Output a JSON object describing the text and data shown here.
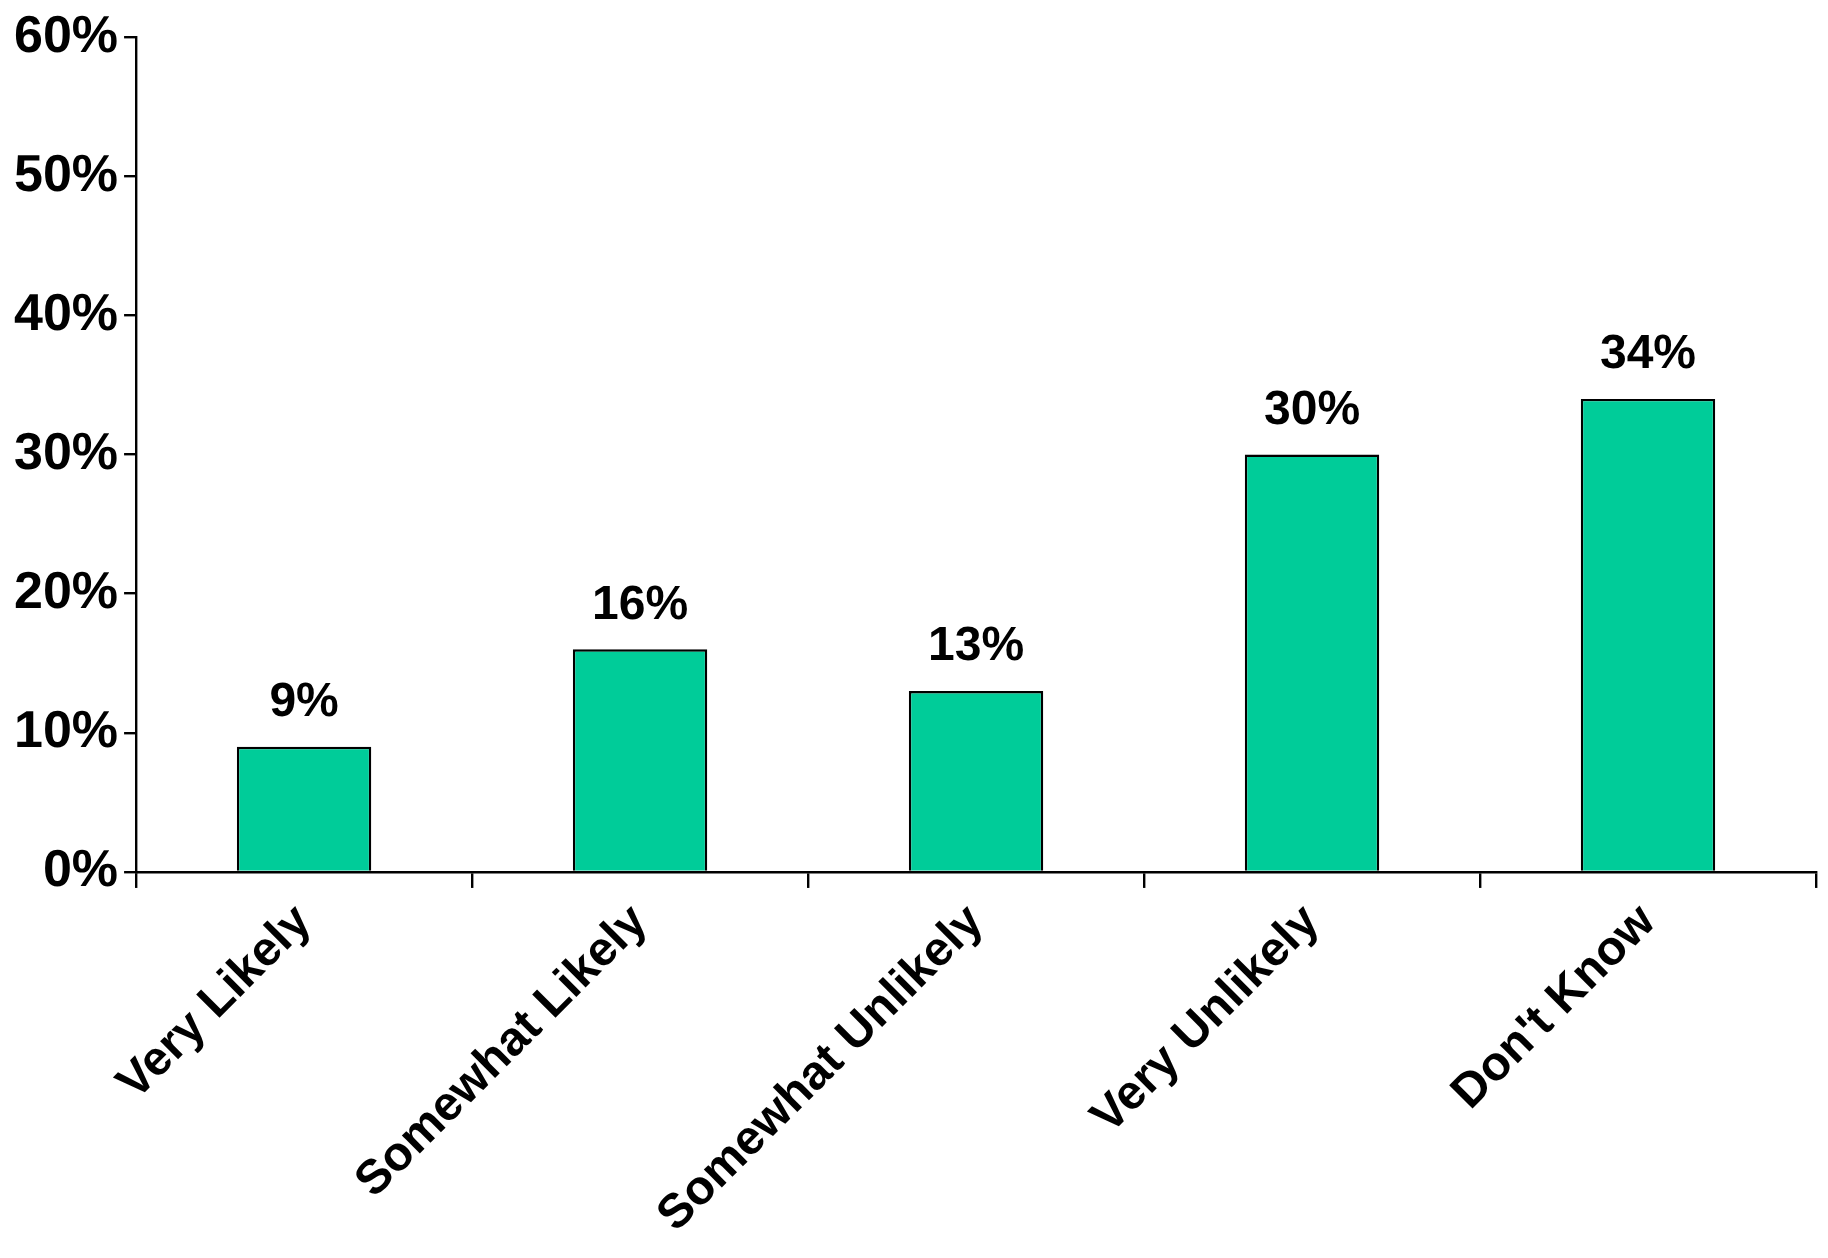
{
  "chart_data": {
    "type": "bar",
    "categories": [
      "Very Likely",
      "Somewhat Likely",
      "Somewhat Unlikely",
      "Very Unlikely",
      "Don't Know"
    ],
    "values": [
      9,
      16,
      13,
      30,
      34
    ],
    "value_labels": [
      "9%",
      "16%",
      "13%",
      "30%",
      "34%"
    ],
    "color": "#00cc99",
    "ylim": [
      0,
      60
    ],
    "yticks": [
      {
        "value": 0,
        "label": "0%"
      },
      {
        "value": 10,
        "label": "10%"
      },
      {
        "value": 20,
        "label": "20%"
      },
      {
        "value": 30,
        "label": "30%"
      },
      {
        "value": 40,
        "label": "40%"
      },
      {
        "value": 50,
        "label": "50%"
      },
      {
        "value": 60,
        "label": "60%"
      }
    ]
  }
}
